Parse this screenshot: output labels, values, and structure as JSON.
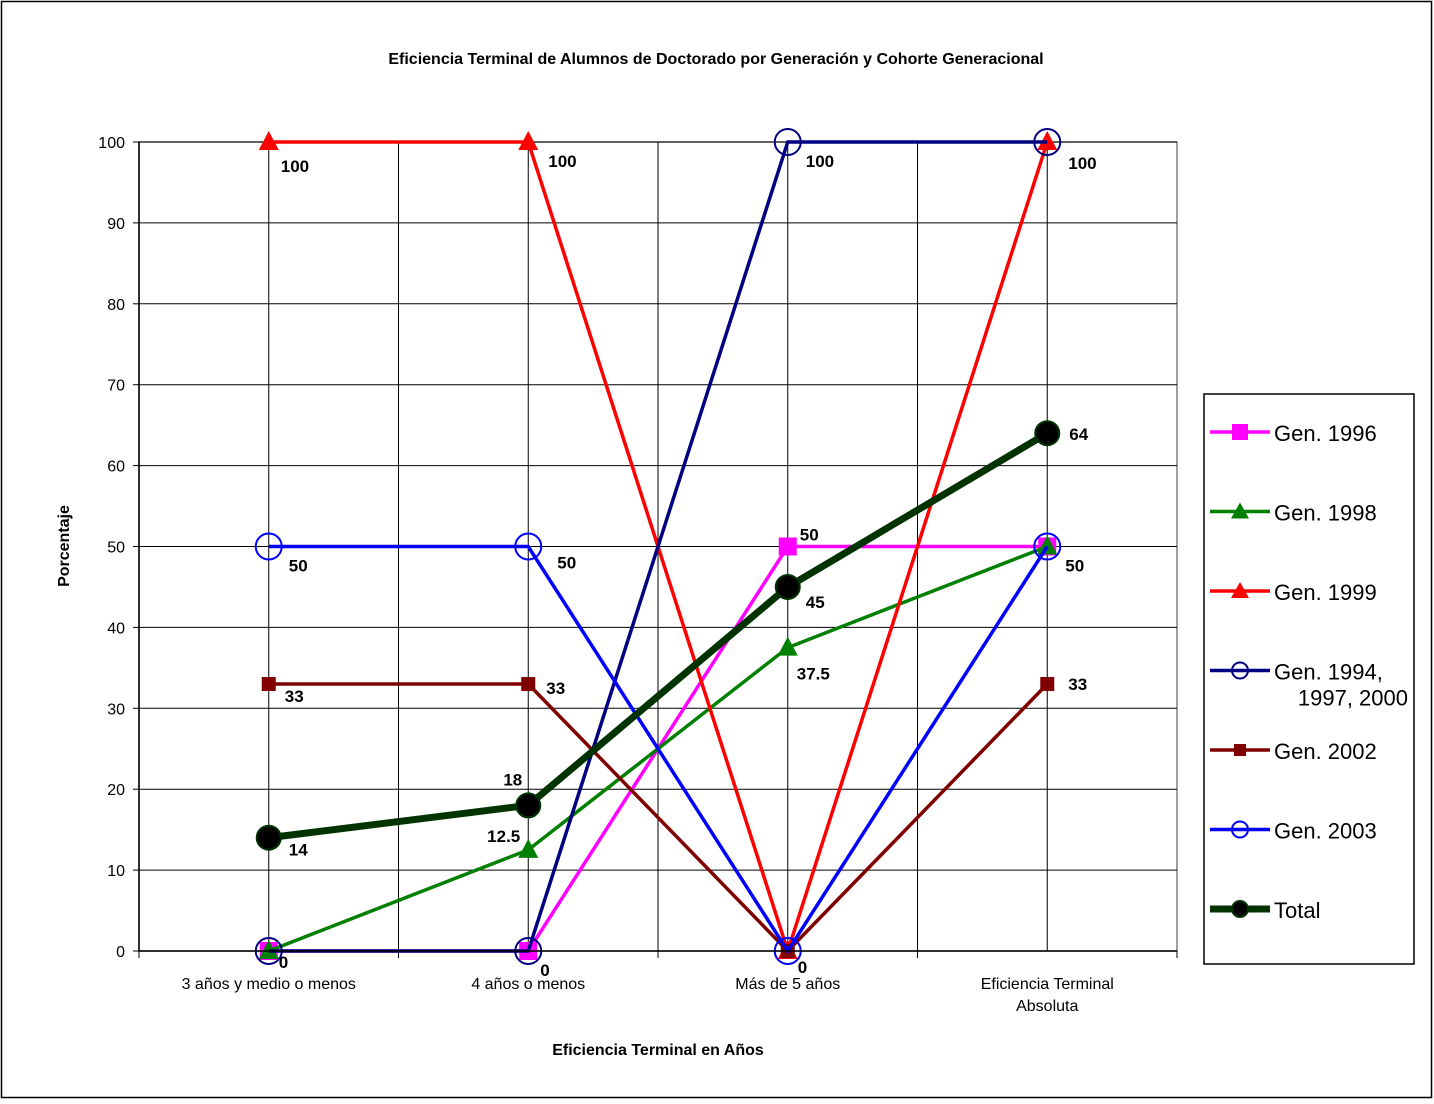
{
  "chart_data": {
    "type": "line",
    "title": "Eficiencia Terminal de Alumnos de Doctorado por Generación y Cohorte Generacional",
    "xlabel": "Eficiencia Terminal en Años",
    "ylabel": "Porcentaje",
    "categories": [
      [
        "3 años y medio o menos"
      ],
      [
        "4 años o menos"
      ],
      [
        "Más de 5 años"
      ],
      [
        "Eficiencia Terminal",
        "Absoluta"
      ]
    ],
    "ylim": [
      0,
      100
    ],
    "yticks": [
      0,
      10,
      20,
      30,
      40,
      50,
      60,
      70,
      80,
      90,
      100
    ],
    "grid": true,
    "legend_position": "right",
    "series": [
      {
        "name": "Gen. 1996",
        "values": [
          0,
          0,
          50,
          50
        ],
        "color": "#ff00ff",
        "marker": "square",
        "labels": [
          "",
          "0",
          "50",
          ""
        ]
      },
      {
        "name": "Gen. 1998",
        "values": [
          0,
          12.5,
          37.5,
          50
        ],
        "color": "#008000",
        "marker": "triangle",
        "labels": [
          "0",
          "12.5",
          "37.5",
          ""
        ]
      },
      {
        "name": "Gen. 1999",
        "values": [
          100,
          100,
          0,
          100
        ],
        "color": "#ff0000",
        "marker": "triangle",
        "labels": [
          "100",
          "100",
          "",
          "100"
        ]
      },
      {
        "name": "Gen. 1994, 1997, 2000",
        "values": [
          0,
          0,
          100,
          100
        ],
        "color": "#000080",
        "marker": "circle-open",
        "labels": [
          "",
          "",
          "100",
          ""
        ]
      },
      {
        "name": "Gen. 2002",
        "values": [
          33,
          33,
          0,
          33
        ],
        "color": "#800000",
        "marker": "square-small",
        "labels": [
          "33",
          "33",
          "0",
          "33"
        ]
      },
      {
        "name": "Gen. 2003",
        "values": [
          50,
          50,
          0,
          50
        ],
        "color": "#0000ff",
        "marker": "circle-open",
        "labels": [
          "50",
          "50",
          "",
          "50"
        ]
      },
      {
        "name": "Total",
        "values": [
          14,
          18,
          45,
          64
        ],
        "color": "#003300",
        "marker": "circle-filled",
        "labels": [
          "14",
          "18",
          "45",
          "64"
        ]
      }
    ]
  }
}
